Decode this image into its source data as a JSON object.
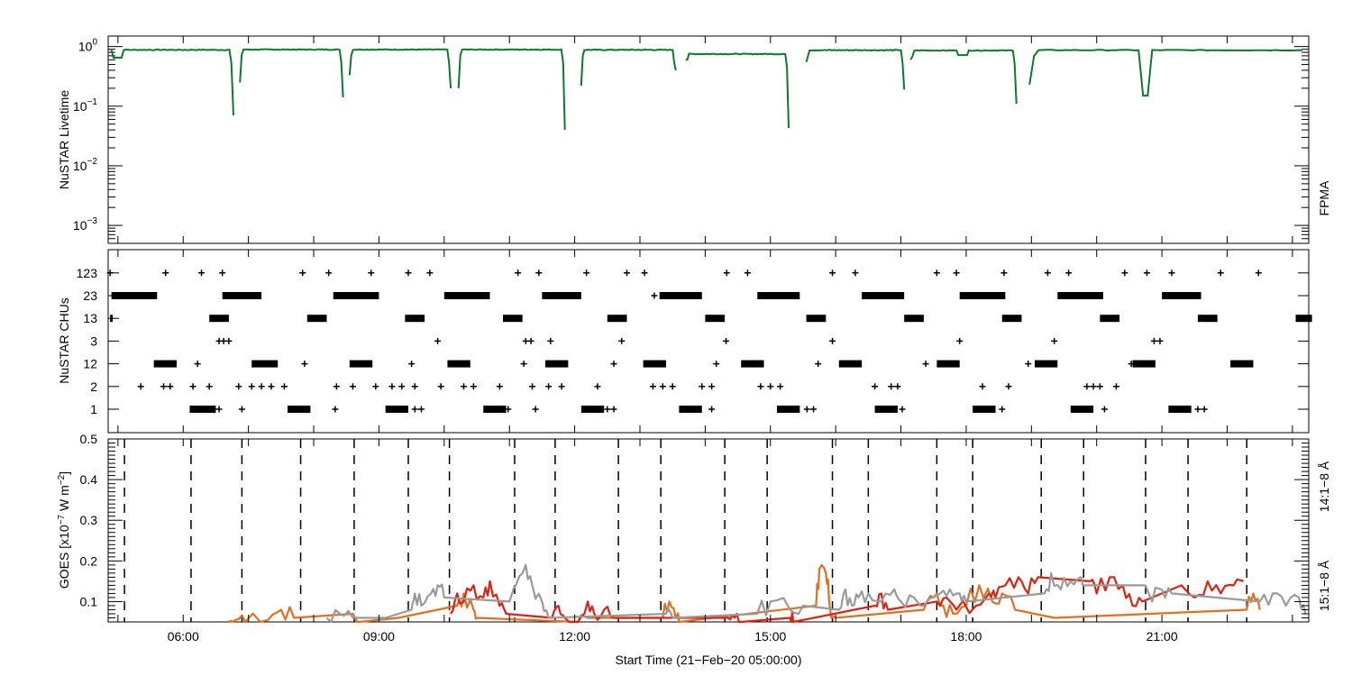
{
  "xlabel": "Start Time (21−Feb−20 05:00:00)",
  "x_ticks": [
    "06:00",
    "09:00",
    "12:00",
    "15:00",
    "18:00",
    "21:00"
  ],
  "colors": {
    "fpma": "#0a7a2f",
    "goes14": "#e07020",
    "goes15": "#e02010",
    "goes_other": "#9a9a9a",
    "axis": "#000000"
  },
  "chart_data": [
    {
      "type": "line",
      "ylabel": "NuSTAR Livetime",
      "yscale": "log",
      "ylim": [
        0.0005,
        1.5
      ],
      "y_ticks": [
        {
          "value": 1,
          "label": "10",
          "exp": "0"
        },
        {
          "value": 0.1,
          "label": "10",
          "exp": "−1"
        },
        {
          "value": 0.01,
          "label": "10",
          "exp": "−2"
        },
        {
          "value": 0.001,
          "label": "10",
          "exp": "−3"
        }
      ],
      "xlim": [
        4.85,
        23.25
      ],
      "series": [
        {
          "name": "FPMA",
          "segments": [
            {
              "start": 4.9,
              "end": 6.77,
              "level": 0.88,
              "dip": {
                "x": 5.0,
                "value": 0.65
              },
              "end_value": 0.07
            },
            {
              "start": 6.87,
              "end": 8.45,
              "level": 0.89,
              "start_value": 0.25,
              "end_value": 0.14
            },
            {
              "start": 8.55,
              "end": 10.1,
              "level": 0.89,
              "start_value": 0.33,
              "end_value": 0.2
            },
            {
              "start": 10.22,
              "end": 11.85,
              "level": 0.89,
              "start_value": 0.2,
              "end_value": 0.04
            },
            {
              "start": 12.1,
              "end": 13.55,
              "level": 0.88,
              "start_value": 0.22,
              "end_value": 0.4
            },
            {
              "start": 13.7,
              "end": 15.28,
              "level": 0.75,
              "start_value": 0.6,
              "end_value": 0.043
            },
            {
              "start": 15.55,
              "end": 17.05,
              "level": 0.87,
              "start_value": 0.55,
              "end_value": 0.19
            },
            {
              "start": 17.15,
              "end": 18.77,
              "level": 0.86,
              "start_value": 0.6,
              "end_value": 0.11,
              "dip": {
                "x": 17.95,
                "value": 0.72
              }
            },
            {
              "start": 18.97,
              "end": 23.15,
              "level": 0.87,
              "start_value": 0.23,
              "dip": {
                "x": 20.75,
                "value": 0.15
              }
            }
          ]
        }
      ]
    },
    {
      "type": "scatter",
      "ylabel": "NuSTAR CHUs",
      "categories": [
        "1",
        "2",
        "12",
        "3",
        "13",
        "23",
        "123"
      ],
      "xlim": [
        4.85,
        23.25
      ],
      "points": {
        "123": {
          "plus": [
            4.88,
            5.73,
            6.28,
            6.6,
            7.83,
            8.23,
            8.88,
            9.45,
            9.78,
            11.13,
            11.45,
            12.18,
            12.8,
            13.07,
            14.33,
            14.65,
            15.95,
            16.3,
            17.55,
            17.85,
            18.58,
            19.25,
            19.57,
            20.43,
            20.77,
            21.15,
            21.9,
            22.48
          ]
        },
        "23": {
          "runs": [
            [
              4.9,
              5.6
            ],
            [
              6.6,
              7.2
            ],
            [
              8.3,
              9.0
            ],
            [
              10.0,
              10.7
            ],
            [
              11.5,
              12.1
            ],
            [
              13.3,
              13.95
            ],
            [
              14.8,
              15.45
            ],
            [
              16.4,
              17.05
            ],
            [
              17.9,
              18.6
            ],
            [
              19.4,
              20.1
            ],
            [
              21.0,
              21.6
            ]
          ],
          "plus": [
            13.22
          ]
        },
        "13": {
          "runs": [
            [
              4.88,
              4.92
            ],
            [
              6.4,
              6.7
            ],
            [
              7.9,
              8.2
            ],
            [
              9.4,
              9.7
            ],
            [
              10.9,
              11.2
            ],
            [
              12.5,
              12.8
            ],
            [
              14.0,
              14.3
            ],
            [
              15.55,
              15.85
            ],
            [
              17.05,
              17.35
            ],
            [
              18.55,
              18.85
            ],
            [
              20.05,
              20.35
            ],
            [
              21.55,
              21.85
            ],
            [
              23.05,
              23.3
            ]
          ]
        },
        "3": {
          "plus": [
            6.55,
            6.62,
            6.7,
            9.9,
            11.25,
            11.33,
            11.63,
            12.72,
            14.32,
            15.95,
            17.9,
            19.35,
            20.88,
            20.97
          ]
        },
        "12": {
          "runs": [
            [
              5.55,
              5.9
            ],
            [
              7.05,
              7.45
            ],
            [
              8.55,
              8.9
            ],
            [
              10.05,
              10.4
            ],
            [
              11.55,
              11.9
            ],
            [
              13.05,
              13.4
            ],
            [
              14.55,
              14.9
            ],
            [
              16.05,
              16.4
            ],
            [
              17.55,
              17.9
            ],
            [
              19.05,
              19.4
            ],
            [
              20.55,
              20.9
            ],
            [
              22.05,
              22.4
            ]
          ],
          "plus": [
            6.22,
            7.86,
            9.5,
            11.22,
            12.6,
            14.17,
            15.73,
            17.38,
            18.95,
            20.53,
            22.1
          ]
        },
        "2": {
          "plus": [
            5.35,
            5.7,
            5.8,
            6.15,
            6.4,
            6.85,
            7.05,
            7.2,
            7.35,
            7.55,
            8.35,
            8.6,
            8.95,
            9.2,
            9.35,
            9.55,
            9.95,
            10.3,
            10.45,
            10.85,
            11.35,
            11.6,
            11.8,
            12.35,
            13.2,
            13.35,
            13.5,
            13.95,
            14.1,
            14.85,
            15.0,
            15.15,
            16.6,
            16.85,
            16.95,
            18.25,
            18.65,
            19.85,
            19.95,
            20.05,
            20.3
          ]
        },
        "1": {
          "runs": [
            [
              6.1,
              6.5
            ],
            [
              7.6,
              7.95
            ],
            [
              9.1,
              9.45
            ],
            [
              10.6,
              10.95
            ],
            [
              12.1,
              12.45
            ],
            [
              13.6,
              13.95
            ],
            [
              15.1,
              15.45
            ],
            [
              16.6,
              16.95
            ],
            [
              18.1,
              18.45
            ],
            [
              19.6,
              19.95
            ],
            [
              21.1,
              21.45
            ]
          ],
          "plus": [
            6.55,
            6.9,
            8.33,
            9.55,
            9.65,
            10.98,
            11.4,
            12.5,
            12.6,
            14.1,
            15.56,
            15.66,
            17.02,
            18.55,
            20.12,
            21.55,
            21.65
          ]
        }
      }
    },
    {
      "type": "line",
      "ylabel": "GOES [x10",
      "ylabel_exp": "−7",
      "ylabel_rest": " W m",
      "ylabel_exp2": "−2",
      "ylabel_end": "]",
      "ylim": [
        0.05,
        0.5
      ],
      "y_ticks": [
        "0.1",
        "0.2",
        "0.3",
        "0.4",
        "0.5"
      ],
      "xlim": [
        4.85,
        23.25
      ],
      "legend_labels": [
        "14:1−8 Å",
        "15:1−8 Å"
      ],
      "vlines": [
        5.1,
        6.12,
        6.9,
        7.8,
        8.62,
        9.45,
        10.08,
        11.08,
        11.7,
        12.67,
        13.32,
        14.3,
        14.95,
        15.95,
        16.5,
        17.55,
        18.1,
        19.15,
        19.8,
        20.75,
        21.4,
        22.3
      ],
      "series": [
        {
          "name": "14:1−8 Å",
          "color": "orange",
          "points": [
            [
              6.7,
              0.05
            ],
            [
              6.8,
              0.055
            ],
            [
              6.95,
              0.05
            ],
            [
              7.3,
              0.055
            ],
            [
              7.5,
              0.08
            ],
            [
              7.7,
              0.06
            ],
            [
              8.6,
              0.07
            ],
            [
              8.7,
              0.05
            ],
            [
              9.3,
              0.06
            ],
            [
              10.2,
              0.09
            ],
            [
              10.3,
              0.12
            ],
            [
              10.45,
              0.08
            ],
            [
              10.5,
              0.06
            ],
            [
              12.05,
              0.05
            ],
            [
              12.2,
              0.06
            ],
            [
              13.35,
              0.06
            ],
            [
              13.45,
              0.1
            ],
            [
              13.55,
              0.06
            ],
            [
              13.6,
              0.05
            ],
            [
              15.7,
              0.09
            ],
            [
              15.75,
              0.18
            ],
            [
              15.85,
              0.17
            ],
            [
              15.9,
              0.1
            ],
            [
              16.0,
              0.06
            ],
            [
              17.35,
              0.08
            ],
            [
              17.5,
              0.11
            ],
            [
              17.65,
              0.09
            ],
            [
              17.8,
              0.07
            ],
            [
              18.0,
              0.09
            ],
            [
              18.2,
              0.14
            ],
            [
              18.4,
              0.1
            ],
            [
              18.55,
              0.12
            ],
            [
              18.75,
              0.08
            ],
            [
              19.35,
              0.06
            ],
            [
              22.3,
              0.08
            ],
            [
              22.4,
              0.12
            ],
            [
              22.5,
              0.08
            ]
          ]
        },
        {
          "name": "15:1−8 Å",
          "color": "red",
          "points": [
            [
              10.1,
              0.07
            ],
            [
              10.2,
              0.12
            ],
            [
              10.3,
              0.1
            ],
            [
              10.45,
              0.14
            ],
            [
              10.6,
              0.11
            ],
            [
              10.7,
              0.15
            ],
            [
              10.85,
              0.09
            ],
            [
              10.95,
              0.07
            ],
            [
              11.65,
              0.06
            ],
            [
              11.75,
              0.09
            ],
            [
              11.85,
              0.06
            ],
            [
              12.05,
              0.05
            ],
            [
              12.2,
              0.1
            ],
            [
              12.3,
              0.07
            ],
            [
              12.45,
              0.08
            ],
            [
              12.6,
              0.06
            ],
            [
              14.35,
              0.06
            ],
            [
              14.45,
              0.06
            ],
            [
              14.55,
              0.05
            ],
            [
              15.3,
              0.06
            ],
            [
              15.35,
              0.05
            ],
            [
              16.6,
              0.09
            ],
            [
              16.7,
              0.12
            ],
            [
              16.8,
              0.08
            ],
            [
              17.55,
              0.1
            ],
            [
              17.7,
              0.11
            ],
            [
              17.85,
              0.08
            ],
            [
              18.15,
              0.09
            ],
            [
              18.35,
              0.12
            ],
            [
              18.45,
              0.11
            ],
            [
              18.6,
              0.14
            ],
            [
              18.8,
              0.16
            ],
            [
              18.95,
              0.12
            ],
            [
              19.1,
              0.16
            ],
            [
              19.9,
              0.15
            ],
            [
              20.0,
              0.12
            ],
            [
              20.2,
              0.16
            ],
            [
              20.4,
              0.14
            ],
            [
              20.55,
              0.09
            ],
            [
              20.7,
              0.1
            ],
            [
              21.3,
              0.14
            ],
            [
              21.5,
              0.11
            ],
            [
              21.7,
              0.15
            ],
            [
              21.9,
              0.12
            ],
            [
              22.1,
              0.14
            ],
            [
              22.25,
              0.15
            ]
          ]
        },
        {
          "name": "other",
          "color": "gray",
          "points": [
            [
              8.2,
              0.06
            ],
            [
              8.4,
              0.07
            ],
            [
              8.6,
              0.06
            ],
            [
              9.1,
              0.06
            ],
            [
              9.5,
              0.08
            ],
            [
              9.55,
              0.12
            ],
            [
              9.65,
              0.09
            ],
            [
              9.8,
              0.12
            ],
            [
              9.9,
              0.14
            ],
            [
              10.0,
              0.11
            ],
            [
              11.0,
              0.1
            ],
            [
              11.1,
              0.14
            ],
            [
              11.25,
              0.19
            ],
            [
              11.35,
              0.14
            ],
            [
              11.5,
              0.1
            ],
            [
              11.6,
              0.06
            ],
            [
              13.4,
              0.07
            ],
            [
              13.5,
              0.06
            ],
            [
              14.8,
              0.07
            ],
            [
              15.0,
              0.1
            ],
            [
              15.3,
              0.08
            ],
            [
              15.5,
              0.09
            ],
            [
              16.05,
              0.08
            ],
            [
              16.15,
              0.13
            ],
            [
              16.25,
              0.09
            ],
            [
              16.35,
              0.11
            ],
            [
              16.5,
              0.12
            ],
            [
              16.7,
              0.1
            ],
            [
              16.9,
              0.13
            ],
            [
              17.0,
              0.1
            ],
            [
              17.2,
              0.11
            ],
            [
              17.35,
              0.09
            ],
            [
              17.6,
              0.12
            ],
            [
              17.75,
              0.13
            ],
            [
              17.9,
              0.12
            ],
            [
              18.0,
              0.1
            ],
            [
              19.2,
              0.12
            ],
            [
              19.3,
              0.17
            ],
            [
              19.45,
              0.13
            ],
            [
              19.6,
              0.15
            ],
            [
              19.75,
              0.16
            ],
            [
              19.8,
              0.14
            ],
            [
              20.7,
              0.14
            ],
            [
              20.85,
              0.1
            ],
            [
              21.0,
              0.13
            ],
            [
              21.15,
              0.12
            ],
            [
              22.5,
              0.1
            ],
            [
              22.7,
              0.12
            ],
            [
              22.9,
              0.09
            ],
            [
              23.1,
              0.11
            ],
            [
              23.2,
              0.07
            ]
          ]
        }
      ]
    }
  ]
}
